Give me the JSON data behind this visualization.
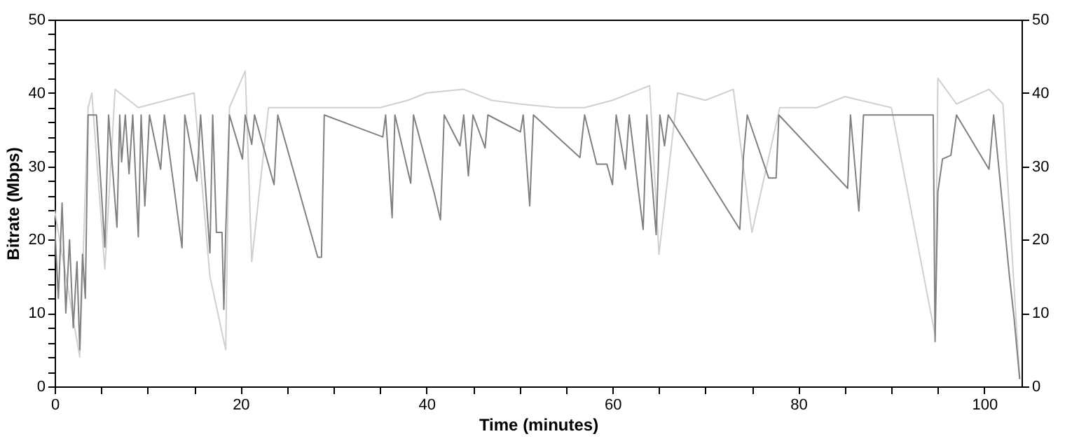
{
  "chart_data": {
    "type": "line",
    "xlabel": "Time (minutes)",
    "ylabel": "Bitrate (Mbps)",
    "xlim": [
      0,
      104
    ],
    "xticks": [
      0,
      {
        "value": 5,
        "label": null
      },
      {
        "value": 10,
        "label": null
      },
      {
        "value": 15,
        "label": null
      },
      20,
      {
        "value": 25,
        "label": null
      },
      {
        "value": 30,
        "label": null
      },
      {
        "value": 35,
        "label": null
      },
      40,
      {
        "value": 45,
        "label": null
      },
      {
        "value": 50,
        "label": null
      },
      {
        "value": 55,
        "label": null
      },
      60,
      {
        "value": 65,
        "label": null
      },
      {
        "value": 70,
        "label": null
      },
      {
        "value": 75,
        "label": null
      },
      80,
      {
        "value": 85,
        "label": null
      },
      {
        "value": 90,
        "label": null
      },
      {
        "value": 95,
        "label": null
      },
      100
    ],
    "ylim": [
      0,
      50
    ],
    "yticks": [
      0,
      {
        "value": 2,
        "label": null
      },
      {
        "value": 4,
        "label": null
      },
      {
        "value": 6,
        "label": null
      },
      {
        "value": 8,
        "label": null
      },
      10,
      {
        "value": 12,
        "label": null
      },
      {
        "value": 14,
        "label": null
      },
      {
        "value": 16,
        "label": null
      },
      {
        "value": 18,
        "label": null
      },
      20,
      {
        "value": 22,
        "label": null
      },
      {
        "value": 24,
        "label": null
      },
      {
        "value": 26,
        "label": null
      },
      {
        "value": 28,
        "label": null
      },
      30,
      {
        "value": 32,
        "label": null
      },
      {
        "value": 34,
        "label": null
      },
      {
        "value": 36,
        "label": null
      },
      {
        "value": 38,
        "label": null
      },
      40,
      {
        "value": 42,
        "label": null
      },
      {
        "value": 44,
        "label": null
      },
      {
        "value": 46,
        "label": null
      },
      {
        "value": 48,
        "label": null
      },
      50
    ],
    "y2lim": [
      0,
      50
    ],
    "y2ticks": [
      0,
      10,
      20,
      30,
      40,
      50
    ],
    "marker": "none",
    "line_style": "solid",
    "series": [
      {
        "color": "#d0d0d0",
        "x": [
          0,
          2.7,
          3.6,
          4,
          5.4,
          6.5,
          9,
          12,
          15,
          16.7,
          18.4,
          18.8,
          20.5,
          21.2,
          23,
          25,
          30,
          35,
          38,
          40,
          44,
          47,
          50,
          54,
          57,
          60,
          64,
          65,
          67,
          70,
          73,
          75,
          78,
          82,
          85,
          90,
          94.7,
          95,
          97,
          100.5,
          102,
          103.8
        ],
        "values": [
          24,
          4,
          38,
          40,
          16,
          40.5,
          38,
          39,
          40,
          15,
          5,
          38,
          43,
          17,
          38,
          38,
          38,
          38,
          39,
          40,
          40.5,
          39,
          38.5,
          38,
          38,
          39,
          41,
          18,
          40,
          39,
          40.5,
          21,
          38,
          38,
          39.5,
          38,
          7,
          42,
          38.5,
          40.5,
          38.5,
          1
        ]
      },
      {
        "color": "#808080",
        "x": [
          0,
          0.4,
          0.8,
          1.2,
          1.6,
          2,
          2.4,
          2.7,
          3,
          3.3,
          3.6,
          4.5,
          5.4,
          5.8,
          6.7,
          7,
          7.2,
          7.6,
          8,
          8.4,
          9,
          9.3,
          9.7,
          10.2,
          11.4,
          11.8,
          13.7,
          14,
          15.3,
          15.7,
          16.7,
          17,
          17.4,
          18,
          18.2,
          18.4,
          18.8,
          20.2,
          20.5,
          21.2,
          21.5,
          23.6,
          24,
          28.3,
          28.7,
          29,
          35.3,
          35.6,
          36.3,
          36.6,
          38.3,
          38.6,
          40.8,
          41.5,
          41.9,
          43.6,
          44,
          44.5,
          45,
          46.3,
          46.6,
          50.1,
          50.4,
          51.1,
          51.5,
          56.5,
          57,
          58.3,
          59.4,
          60,
          60.4,
          61.4,
          61.8,
          63.3,
          63.7,
          64.7,
          65.1,
          65.6,
          66,
          73.7,
          74.1,
          74.5,
          76.8,
          77.6,
          77.9,
          85.3,
          85.6,
          86.5,
          87,
          94.5,
          94.7,
          95,
          95.5,
          96.4,
          97,
          100.5,
          101,
          102.7,
          103.2,
          103.8
        ],
        "values": [
          22,
          12,
          25,
          10,
          20,
          8,
          17,
          5,
          18,
          12,
          37,
          37,
          19,
          37,
          21.7,
          37,
          30.6,
          37,
          29,
          37,
          20.4,
          37,
          24.6,
          37,
          29.6,
          37,
          18.9,
          37,
          28,
          37,
          18.2,
          37,
          21,
          21,
          10.5,
          21,
          37,
          31,
          37,
          33,
          37,
          27.5,
          37,
          17.6,
          17.6,
          37,
          34,
          37,
          23,
          37,
          27.7,
          37,
          26.5,
          22.7,
          37,
          32.8,
          37,
          28.7,
          37,
          32.5,
          37,
          34.7,
          37,
          24.6,
          37,
          31.2,
          37,
          30.3,
          30.3,
          27.5,
          37,
          29.6,
          37,
          21.4,
          37,
          20.7,
          37,
          32.8,
          37,
          21.4,
          31.5,
          37,
          28.4,
          28.4,
          37,
          27,
          37,
          23.9,
          37,
          37,
          6.1,
          26.5,
          31,
          31.5,
          37,
          29.6,
          37,
          15,
          9.3,
          1
        ]
      }
    ]
  }
}
